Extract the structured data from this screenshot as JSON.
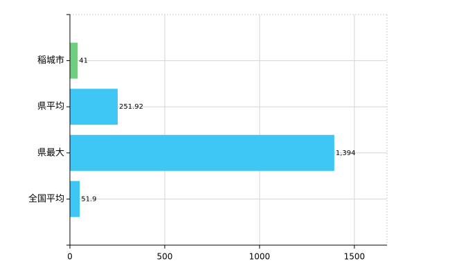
{
  "chart_data": {
    "type": "bar",
    "orientation": "horizontal",
    "categories": [
      "稲城市",
      "県平均",
      "県最大",
      "全国平均"
    ],
    "values": [
      41,
      251.92,
      1394,
      51.9
    ],
    "value_labels": [
      "41",
      "251.92",
      "1,394",
      "51.9"
    ],
    "colors": [
      "#6fcf7f",
      "#3ec6f5",
      "#3ec6f5",
      "#3ec6f5"
    ],
    "xlim": [
      0,
      1672
    ],
    "xticks": [
      0,
      500,
      1000,
      1500
    ],
    "grid": true
  }
}
